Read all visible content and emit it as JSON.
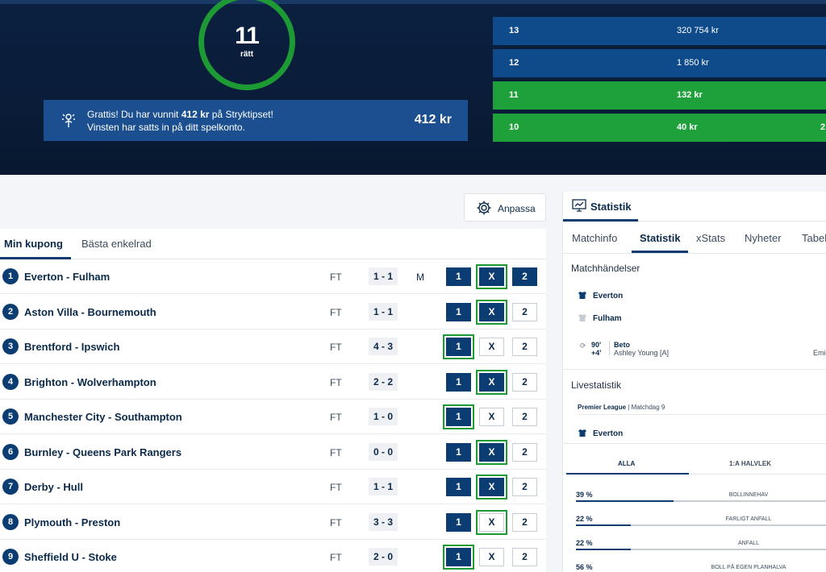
{
  "hero": {
    "correct_count": "11",
    "correct_label": "rätt",
    "banner": {
      "line1_pre": "Grattis! Du har vunnit ",
      "line1_amount": "412 kr",
      "line1_post": " på Stryktipset!",
      "line2": "Vinsten har satts in på ditt spelkonto.",
      "amount": "412 kr"
    },
    "prizes": [
      {
        "rows": "13",
        "amount": "320 754 kr",
        "extra": "",
        "highlight": false
      },
      {
        "rows": "12",
        "amount": "1 850 kr",
        "extra": "",
        "highlight": false
      },
      {
        "rows": "11",
        "amount": "132 kr",
        "extra": "",
        "highlight": true
      },
      {
        "rows": "10",
        "amount": "40 kr",
        "extra": "2",
        "highlight": true
      }
    ],
    "colors": {
      "green": "#1ea13a",
      "blue": "#0f4a8a",
      "dark": "#0a1c38"
    }
  },
  "toolbar": {
    "anpassa_label": "Anpassa"
  },
  "coupon": {
    "tabs": [
      "Min kupong",
      "Bästa enkelrad"
    ],
    "matches": [
      {
        "n": "1",
        "name": "Everton - Fulham",
        "status": "FT",
        "score": "1 - 1",
        "flag": "M",
        "picks": [
          "1",
          "X",
          "2"
        ],
        "selected": [
          true,
          true,
          true
        ],
        "correct": "X"
      },
      {
        "n": "2",
        "name": "Aston Villa - Bournemouth",
        "status": "FT",
        "score": "1 - 1",
        "flag": "",
        "picks": [
          "1",
          "X",
          "2"
        ],
        "selected": [
          true,
          true,
          false
        ],
        "correct": "X"
      },
      {
        "n": "3",
        "name": "Brentford - Ipswich",
        "status": "FT",
        "score": "4 - 3",
        "flag": "",
        "picks": [
          "1",
          "X",
          "2"
        ],
        "selected": [
          true,
          false,
          false
        ],
        "correct": "1"
      },
      {
        "n": "4",
        "name": "Brighton - Wolverhampton",
        "status": "FT",
        "score": "2 - 2",
        "flag": "",
        "picks": [
          "1",
          "X",
          "2"
        ],
        "selected": [
          true,
          true,
          false
        ],
        "correct": "X"
      },
      {
        "n": "5",
        "name": "Manchester City - Southampton",
        "status": "FT",
        "score": "1 - 0",
        "flag": "",
        "picks": [
          "1",
          "X",
          "2"
        ],
        "selected": [
          true,
          false,
          false
        ],
        "correct": "1"
      },
      {
        "n": "6",
        "name": "Burnley - Queens Park Rangers",
        "status": "FT",
        "score": "0 - 0",
        "flag": "",
        "picks": [
          "1",
          "X",
          "2"
        ],
        "selected": [
          true,
          true,
          false
        ],
        "correct": "X"
      },
      {
        "n": "7",
        "name": "Derby - Hull",
        "status": "FT",
        "score": "1 - 1",
        "flag": "",
        "picks": [
          "1",
          "X",
          "2"
        ],
        "selected": [
          true,
          true,
          false
        ],
        "correct": "X"
      },
      {
        "n": "8",
        "name": "Plymouth - Preston",
        "status": "FT",
        "score": "3 - 3",
        "flag": "",
        "picks": [
          "1",
          "X",
          "2"
        ],
        "selected": [
          true,
          false,
          false
        ],
        "correct": "X"
      },
      {
        "n": "9",
        "name": "Sheffield U - Stoke",
        "status": "FT",
        "score": "2 - 0",
        "flag": "",
        "picks": [
          "1",
          "X",
          "2"
        ],
        "selected": [
          true,
          false,
          false
        ],
        "correct": "1"
      }
    ]
  },
  "stats_panel": {
    "title": "Statistik",
    "tabs": [
      "Matchinfo",
      "Statistik",
      "xStats",
      "Nyheter",
      "Tabel"
    ],
    "events_title": "Matchhändelser",
    "home_team": "Everton",
    "away_team": "Fulham",
    "event": {
      "minute": "90'",
      "added": "+4'",
      "player": "Beto",
      "assist": "Ashley Young [A]",
      "extra": "Emi"
    },
    "live_title": "Livestatistik",
    "league": "Premier League",
    "round": "Matchdag 9",
    "live_team": "Everton",
    "period_tabs": [
      "ALLA",
      "1:A HALVLEK"
    ],
    "stats": [
      {
        "pct": "39 %",
        "name": "BOLLINNEHAV",
        "value": 0.39
      },
      {
        "pct": "22 %",
        "name": "FARLIGT ANFALL",
        "value": 0.22
      },
      {
        "pct": "22 %",
        "name": "ANFALL",
        "value": 0.22
      },
      {
        "pct": "56 %",
        "name": "BOLL PÅ EGEN PLANHALVA",
        "value": 0.56
      }
    ]
  }
}
